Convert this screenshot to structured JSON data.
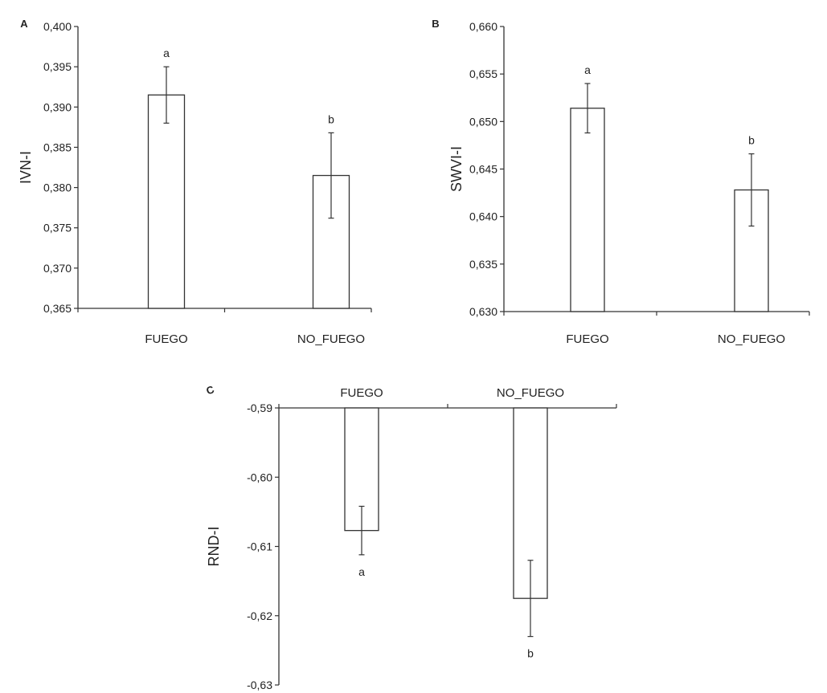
{
  "chart_data": [
    {
      "type": "bar",
      "panel_label": "A",
      "ylabel": "IVN-I",
      "categories": [
        "FUEGO",
        "NO_FUEGO"
      ],
      "values": [
        0.3915,
        0.3815
      ],
      "errors": [
        0.0035,
        0.0053
      ],
      "significance": [
        "a",
        "b"
      ],
      "yticks": [
        "0,400",
        "0,395",
        "0,390",
        "0,385",
        "0,380",
        "0,375",
        "0,370",
        "0,365"
      ],
      "ylim": [
        0.365,
        0.4
      ],
      "category_axis": "bottom",
      "legend": "none",
      "grid": false
    },
    {
      "type": "bar",
      "panel_label": "B",
      "ylabel": "SWVI-I",
      "categories": [
        "FUEGO",
        "NO_FUEGO"
      ],
      "values": [
        0.6514,
        0.6428
      ],
      "errors": [
        0.0026,
        0.0038
      ],
      "significance": [
        "a",
        "b"
      ],
      "yticks": [
        "0,660",
        "0,655",
        "0,650",
        "0,645",
        "0,640",
        "0,635",
        "0,630"
      ],
      "ylim": [
        0.63,
        0.66
      ],
      "category_axis": "bottom",
      "legend": "none",
      "grid": false
    },
    {
      "type": "bar",
      "panel_label": "C",
      "ylabel": "RND-I",
      "categories": [
        "FUEGO",
        "NO_FUEGO"
      ],
      "values": [
        -0.6077,
        -0.6175
      ],
      "errors": [
        0.0035,
        0.0055
      ],
      "significance": [
        "a",
        "b"
      ],
      "yticks": [
        "-0,59",
        "-0,60",
        "-0,61",
        "-0,62",
        "-0,63"
      ],
      "ylim": [
        -0.63,
        -0.59
      ],
      "category_axis": "top",
      "legend": "none",
      "grid": false
    }
  ]
}
